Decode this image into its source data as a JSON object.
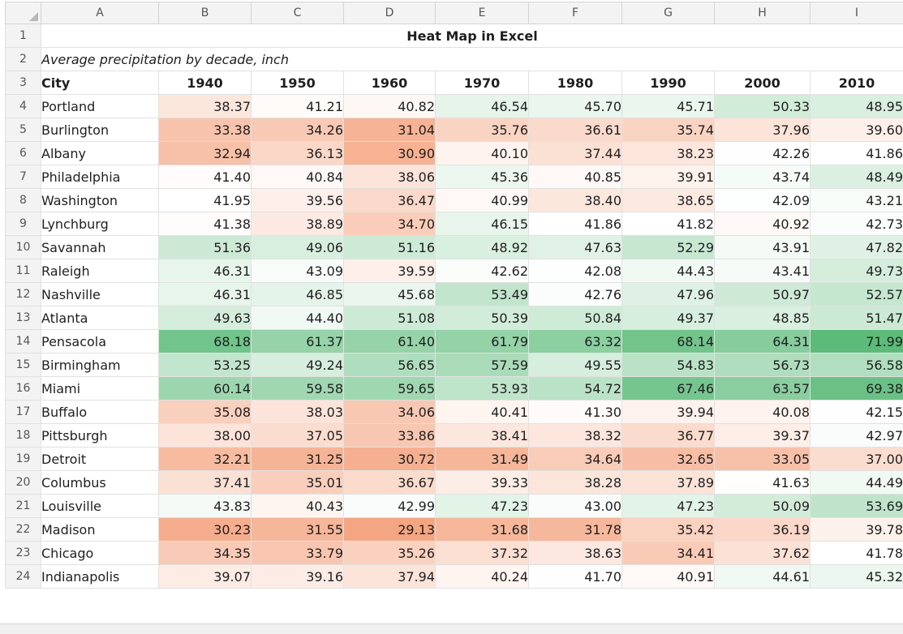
{
  "sheet": {
    "column_letters": [
      "A",
      "B",
      "C",
      "D",
      "E",
      "F",
      "G",
      "H",
      "I"
    ],
    "title": "Heat Map in Excel",
    "subtitle": "Average precipitation by decade, inch",
    "header": {
      "city_label": "City",
      "years": [
        "1940",
        "1950",
        "1960",
        "1970",
        "1980",
        "1990",
        "2000",
        "2010"
      ]
    },
    "colors": {
      "low": "#f4a582",
      "mid": "#ffffff",
      "high": "#5dbb7a"
    },
    "rows": [
      {
        "row": 4,
        "city": "Portland",
        "values": [
          "38.37",
          "41.21",
          "40.82",
          "46.54",
          "45.70",
          "45.71",
          "50.33",
          "48.95"
        ]
      },
      {
        "row": 5,
        "city": "Burlington",
        "values": [
          "33.38",
          "34.26",
          "31.04",
          "35.76",
          "36.61",
          "35.74",
          "37.96",
          "39.60"
        ]
      },
      {
        "row": 6,
        "city": "Albany",
        "values": [
          "32.94",
          "36.13",
          "30.90",
          "40.10",
          "37.44",
          "38.23",
          "42.26",
          "41.86"
        ]
      },
      {
        "row": 7,
        "city": "Philadelphia",
        "values": [
          "41.40",
          "40.84",
          "38.06",
          "45.36",
          "40.85",
          "39.91",
          "43.74",
          "48.49"
        ]
      },
      {
        "row": 8,
        "city": "Washington",
        "values": [
          "41.95",
          "39.56",
          "36.47",
          "40.99",
          "38.40",
          "38.65",
          "42.09",
          "43.21"
        ]
      },
      {
        "row": 9,
        "city": "Lynchburg",
        "values": [
          "41.38",
          "38.89",
          "34.70",
          "46.15",
          "41.86",
          "41.82",
          "40.92",
          "42.73"
        ]
      },
      {
        "row": 10,
        "city": "Savannah",
        "values": [
          "51.36",
          "49.06",
          "51.16",
          "48.92",
          "47.63",
          "52.29",
          "43.91",
          "47.82"
        ]
      },
      {
        "row": 11,
        "city": "Raleigh",
        "values": [
          "46.31",
          "43.09",
          "39.59",
          "42.62",
          "42.08",
          "44.43",
          "43.41",
          "49.73"
        ]
      },
      {
        "row": 12,
        "city": "Nashville",
        "values": [
          "46.31",
          "46.85",
          "45.68",
          "53.49",
          "42.76",
          "47.96",
          "50.97",
          "52.57"
        ]
      },
      {
        "row": 13,
        "city": "Atlanta",
        "values": [
          "49.63",
          "44.40",
          "51.08",
          "50.39",
          "50.84",
          "49.37",
          "48.85",
          "51.47"
        ]
      },
      {
        "row": 14,
        "city": "Pensacola",
        "values": [
          "68.18",
          "61.37",
          "61.40",
          "61.79",
          "63.32",
          "68.14",
          "64.31",
          "71.99"
        ]
      },
      {
        "row": 15,
        "city": "Birmingham",
        "values": [
          "53.25",
          "49.24",
          "56.65",
          "57.59",
          "49.55",
          "54.83",
          "56.73",
          "56.58"
        ]
      },
      {
        "row": 16,
        "city": "Miami",
        "values": [
          "60.14",
          "59.58",
          "59.65",
          "53.93",
          "54.72",
          "67.46",
          "63.57",
          "69.38"
        ]
      },
      {
        "row": 17,
        "city": "Buffalo",
        "values": [
          "35.08",
          "38.03",
          "34.06",
          "40.41",
          "41.30",
          "39.94",
          "40.08",
          "42.15"
        ]
      },
      {
        "row": 18,
        "city": "Pittsburgh",
        "values": [
          "38.00",
          "37.05",
          "33.86",
          "38.41",
          "38.32",
          "36.77",
          "39.37",
          "42.97"
        ]
      },
      {
        "row": 19,
        "city": "Detroit",
        "values": [
          "32.21",
          "31.25",
          "30.72",
          "31.49",
          "34.64",
          "32.65",
          "33.05",
          "37.00"
        ]
      },
      {
        "row": 20,
        "city": "Columbus",
        "values": [
          "37.41",
          "35.01",
          "36.67",
          "39.33",
          "38.28",
          "37.89",
          "41.63",
          "44.49"
        ]
      },
      {
        "row": 21,
        "city": "Louisville",
        "values": [
          "43.83",
          "40.43",
          "42.99",
          "47.23",
          "43.00",
          "47.23",
          "50.09",
          "53.69"
        ]
      },
      {
        "row": 22,
        "city": "Madison",
        "values": [
          "30.23",
          "31.55",
          "29.13",
          "31.68",
          "31.78",
          "35.42",
          "36.19",
          "39.78"
        ]
      },
      {
        "row": 23,
        "city": "Chicago",
        "values": [
          "34.35",
          "33.79",
          "35.26",
          "37.32",
          "38.63",
          "34.41",
          "37.62",
          "41.78"
        ]
      },
      {
        "row": 24,
        "city": "Indianapolis",
        "values": [
          "39.07",
          "39.16",
          "37.94",
          "40.24",
          "41.70",
          "40.91",
          "44.61",
          "45.32"
        ]
      }
    ]
  }
}
